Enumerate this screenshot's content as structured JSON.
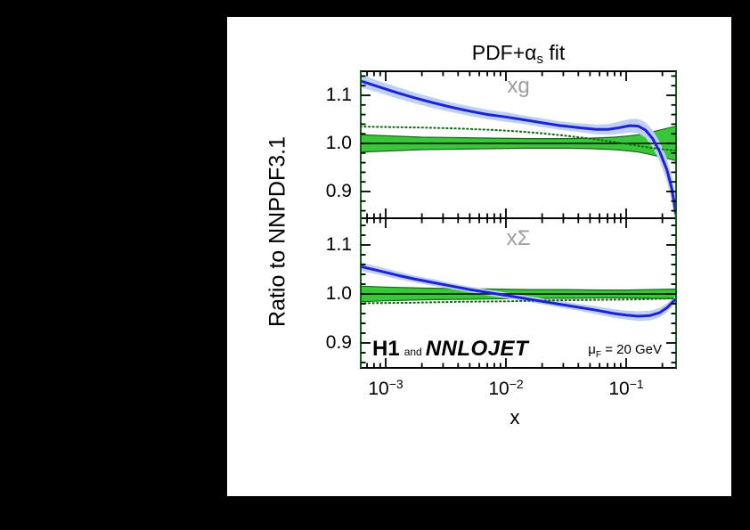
{
  "figure": {
    "background": "#000000",
    "canvas_background": "#ffffff",
    "title": {
      "prefix": "PDF+",
      "alpha": "α",
      "alpha_sub": "s",
      "suffix": " fit"
    },
    "branding": {
      "h1": "H1",
      "and": "and",
      "nnlojet": "NNLOJET"
    },
    "annotation": {
      "mu": "μ",
      "mu_sub": "F",
      "value": " = 20 GeV"
    }
  },
  "chart_data": {
    "type": "line",
    "title": "PDF+αs fit",
    "xlabel": "x",
    "ylabel": "Ratio to NNPDF3.1",
    "xscale": "log",
    "xlim": [
      0.00062,
      0.26
    ],
    "grid": false,
    "legend": "none",
    "colors": {
      "fit_line": "#1c22d7",
      "fit_band": "#bed0f5",
      "reference_band": "#38c738",
      "reference_band_edge": "#156b15",
      "dotted_curve": "#156b15",
      "unity_line": "#000000",
      "frame": "#000000",
      "axis_vertical": "#1a5c1a",
      "panel_label": "#9e9e9e"
    },
    "xticks": [
      {
        "base": "10",
        "exp": "−3",
        "value": 0.001
      },
      {
        "base": "10",
        "exp": "−2",
        "value": 0.01
      },
      {
        "base": "10",
        "exp": "−1",
        "value": 0.1
      }
    ],
    "panels": [
      {
        "label": "xg",
        "ylim": [
          0.85,
          1.15
        ],
        "yticks": [
          1.1,
          1.0,
          0.9
        ],
        "ytick_labels": [
          "1.1",
          "1.0",
          "0.9"
        ],
        "unity": 1.0,
        "reference_band": [
          [
            -3.21,
            0.018
          ],
          [
            -3.0,
            0.016
          ],
          [
            -2.7,
            0.013
          ],
          [
            -2.4,
            0.012
          ],
          [
            -2.1,
            0.011
          ],
          [
            -1.8,
            0.01
          ],
          [
            -1.5,
            0.01
          ],
          [
            -1.3,
            0.011
          ],
          [
            -1.1,
            0.013
          ],
          [
            -1.0,
            0.015
          ],
          [
            -0.9,
            0.018
          ],
          [
            -0.8,
            0.023
          ],
          [
            -0.7,
            0.029
          ],
          [
            -0.585,
            0.036
          ]
        ],
        "dotted_curve": [
          [
            -3.21,
            1.035
          ],
          [
            -3.0,
            1.034
          ],
          [
            -2.7,
            1.033
          ],
          [
            -2.4,
            1.031
          ],
          [
            -2.1,
            1.028
          ],
          [
            -1.9,
            1.025
          ],
          [
            -1.7,
            1.021
          ],
          [
            -1.5,
            1.016
          ],
          [
            -1.3,
            1.01
          ],
          [
            -1.1,
            1.003
          ],
          [
            -0.95,
            0.997
          ],
          [
            -0.8,
            0.991
          ],
          [
            -0.7,
            0.988
          ],
          [
            -0.585,
            0.985
          ]
        ],
        "fit_curve": [
          [
            -3.21,
            1.13,
            0.013
          ],
          [
            -3.05,
            1.117,
            0.012
          ],
          [
            -2.9,
            1.105,
            0.012
          ],
          [
            -2.75,
            1.094,
            0.011
          ],
          [
            -2.6,
            1.084,
            0.011
          ],
          [
            -2.45,
            1.075,
            0.01
          ],
          [
            -2.3,
            1.067,
            0.01
          ],
          [
            -2.15,
            1.06,
            0.01
          ],
          [
            -2.0,
            1.055,
            0.01
          ],
          [
            -1.85,
            1.049,
            0.009
          ],
          [
            -1.7,
            1.043,
            0.009
          ],
          [
            -1.55,
            1.037,
            0.009
          ],
          [
            -1.4,
            1.033,
            0.009
          ],
          [
            -1.25,
            1.029,
            0.01
          ],
          [
            -1.15,
            1.029,
            0.011
          ],
          [
            -1.05,
            1.033,
            0.013
          ],
          [
            -0.97,
            1.037,
            0.014
          ],
          [
            -0.9,
            1.036,
            0.015
          ],
          [
            -0.84,
            1.028,
            0.016
          ],
          [
            -0.78,
            1.01,
            0.018
          ],
          [
            -0.72,
            0.982,
            0.02
          ],
          [
            -0.66,
            0.944,
            0.024
          ],
          [
            -0.62,
            0.905,
            0.028
          ],
          [
            -0.585,
            0.852,
            0.034
          ]
        ]
      },
      {
        "label": "xΣ",
        "ylim": [
          0.85,
          1.15
        ],
        "yticks": [
          1.1,
          1.0,
          0.9
        ],
        "ytick_labels": [
          "1.1",
          "1.0",
          "0.9"
        ],
        "unity": 1.0,
        "reference_band": [
          [
            -3.21,
            0.016
          ],
          [
            -3.0,
            0.014
          ],
          [
            -2.7,
            0.012
          ],
          [
            -2.4,
            0.011
          ],
          [
            -2.1,
            0.01
          ],
          [
            -1.8,
            0.009
          ],
          [
            -1.5,
            0.009
          ],
          [
            -1.2,
            0.008
          ],
          [
            -1.0,
            0.008
          ],
          [
            -0.8,
            0.009
          ],
          [
            -0.585,
            0.01
          ]
        ],
        "dotted_curve": [
          [
            -3.21,
            0.981
          ],
          [
            -2.8,
            0.982
          ],
          [
            -2.4,
            0.984
          ],
          [
            -2.0,
            0.985
          ],
          [
            -1.6,
            0.987
          ],
          [
            -1.2,
            0.988
          ],
          [
            -0.9,
            0.989
          ],
          [
            -0.585,
            0.991
          ]
        ],
        "fit_curve": [
          [
            -3.21,
            1.056,
            0.009
          ],
          [
            -3.05,
            1.047,
            0.008
          ],
          [
            -2.9,
            1.038,
            0.008
          ],
          [
            -2.75,
            1.03,
            0.007
          ],
          [
            -2.6,
            1.023,
            0.007
          ],
          [
            -2.45,
            1.016,
            0.006
          ],
          [
            -2.3,
            1.009,
            0.006
          ],
          [
            -2.15,
            1.003,
            0.006
          ],
          [
            -2.0,
            0.997,
            0.006
          ],
          [
            -1.85,
            0.991,
            0.006
          ],
          [
            -1.7,
            0.985,
            0.006
          ],
          [
            -1.55,
            0.979,
            0.007
          ],
          [
            -1.4,
            0.973,
            0.007
          ],
          [
            -1.25,
            0.967,
            0.008
          ],
          [
            -1.1,
            0.96,
            0.009
          ],
          [
            -1.0,
            0.957,
            0.009
          ],
          [
            -0.9,
            0.9545,
            0.01
          ],
          [
            -0.8,
            0.956,
            0.01
          ],
          [
            -0.72,
            0.962,
            0.01
          ],
          [
            -0.66,
            0.972,
            0.009
          ],
          [
            -0.62,
            0.982,
            0.008
          ],
          [
            -0.585,
            0.99,
            0.008
          ]
        ]
      }
    ]
  }
}
